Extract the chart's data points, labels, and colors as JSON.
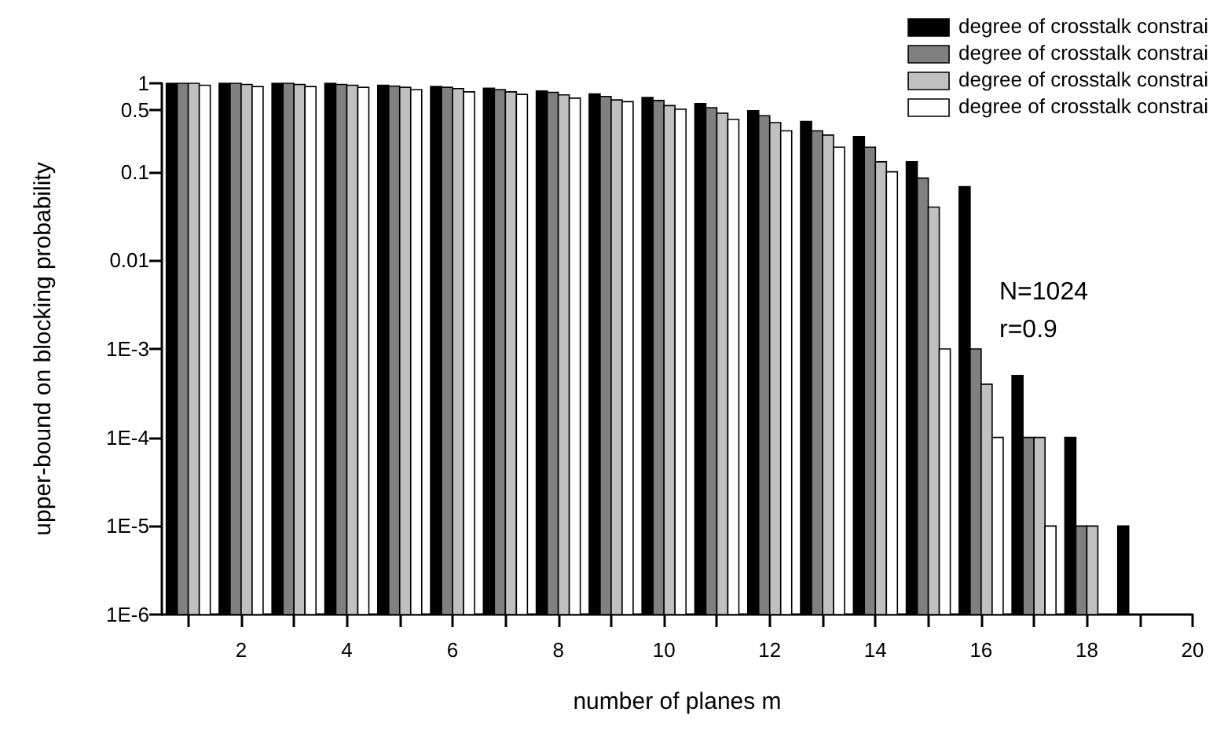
{
  "chart_data": {
    "type": "bar",
    "xlabel": "number of planes m",
    "ylabel": "upper-bound on blocking probability",
    "annotations": [
      "N=1024",
      "r=0.9"
    ],
    "x": [
      1,
      2,
      3,
      4,
      5,
      6,
      7,
      8,
      9,
      10,
      11,
      12,
      13,
      14,
      15,
      16,
      17,
      18,
      19
    ],
    "series": [
      {
        "name": "degree of crosstalk constrai",
        "color": "#000000",
        "values": [
          1,
          1,
          1,
          1,
          0.95,
          0.92,
          0.88,
          0.82,
          0.76,
          0.69,
          0.59,
          0.49,
          0.37,
          0.25,
          0.13,
          0.068,
          0.0005,
          0.0001,
          1e-05
        ]
      },
      {
        "name": "degree of crosstalk constrai",
        "color": "#808080",
        "values": [
          1,
          1,
          1,
          0.97,
          0.93,
          0.9,
          0.85,
          0.79,
          0.71,
          0.64,
          0.53,
          0.43,
          0.29,
          0.19,
          0.085,
          0.001,
          0.0001,
          1e-05,
          null
        ]
      },
      {
        "name": "degree of crosstalk constrai",
        "color": "#c0c0c0",
        "values": [
          1,
          0.97,
          0.97,
          0.95,
          0.9,
          0.87,
          0.8,
          0.74,
          0.65,
          0.56,
          0.46,
          0.36,
          0.26,
          0.13,
          0.04,
          0.0004,
          0.0001,
          1e-05,
          null
        ]
      },
      {
        "name": "degree of crosstalk constrai",
        "color": "#ffffff",
        "values": [
          0.95,
          0.92,
          0.92,
          0.9,
          0.85,
          0.8,
          0.75,
          0.68,
          0.62,
          0.51,
          0.39,
          0.29,
          0.19,
          0.1,
          0.001,
          0.0001,
          1e-05,
          null,
          null
        ]
      }
    ],
    "log": true,
    "ylim": [
      1e-06,
      1
    ],
    "yticks": [
      {
        "value": 1e-06,
        "label": "1E-6"
      },
      {
        "value": 1e-05,
        "label": "1E-5"
      },
      {
        "value": 0.0001,
        "label": "1E-4"
      },
      {
        "value": 0.001,
        "label": "1E-3"
      },
      0.01,
      0.1,
      0.5,
      1
    ],
    "xlim": [
      0.5,
      20
    ],
    "xticks": [
      {
        "value": 1,
        "label": null
      },
      2,
      {
        "value": 3,
        "label": null
      },
      4,
      {
        "value": 5,
        "label": null
      },
      6,
      {
        "value": 7,
        "label": null
      },
      8,
      {
        "value": 9,
        "label": null
      },
      10,
      {
        "value": 11,
        "label": null
      },
      12,
      {
        "value": 13,
        "label": null
      },
      14,
      {
        "value": 15,
        "label": null
      },
      16,
      {
        "value": 17,
        "label": null
      },
      18,
      {
        "value": 19,
        "label": null
      },
      20
    ],
    "grid": false,
    "legend": "top right"
  }
}
